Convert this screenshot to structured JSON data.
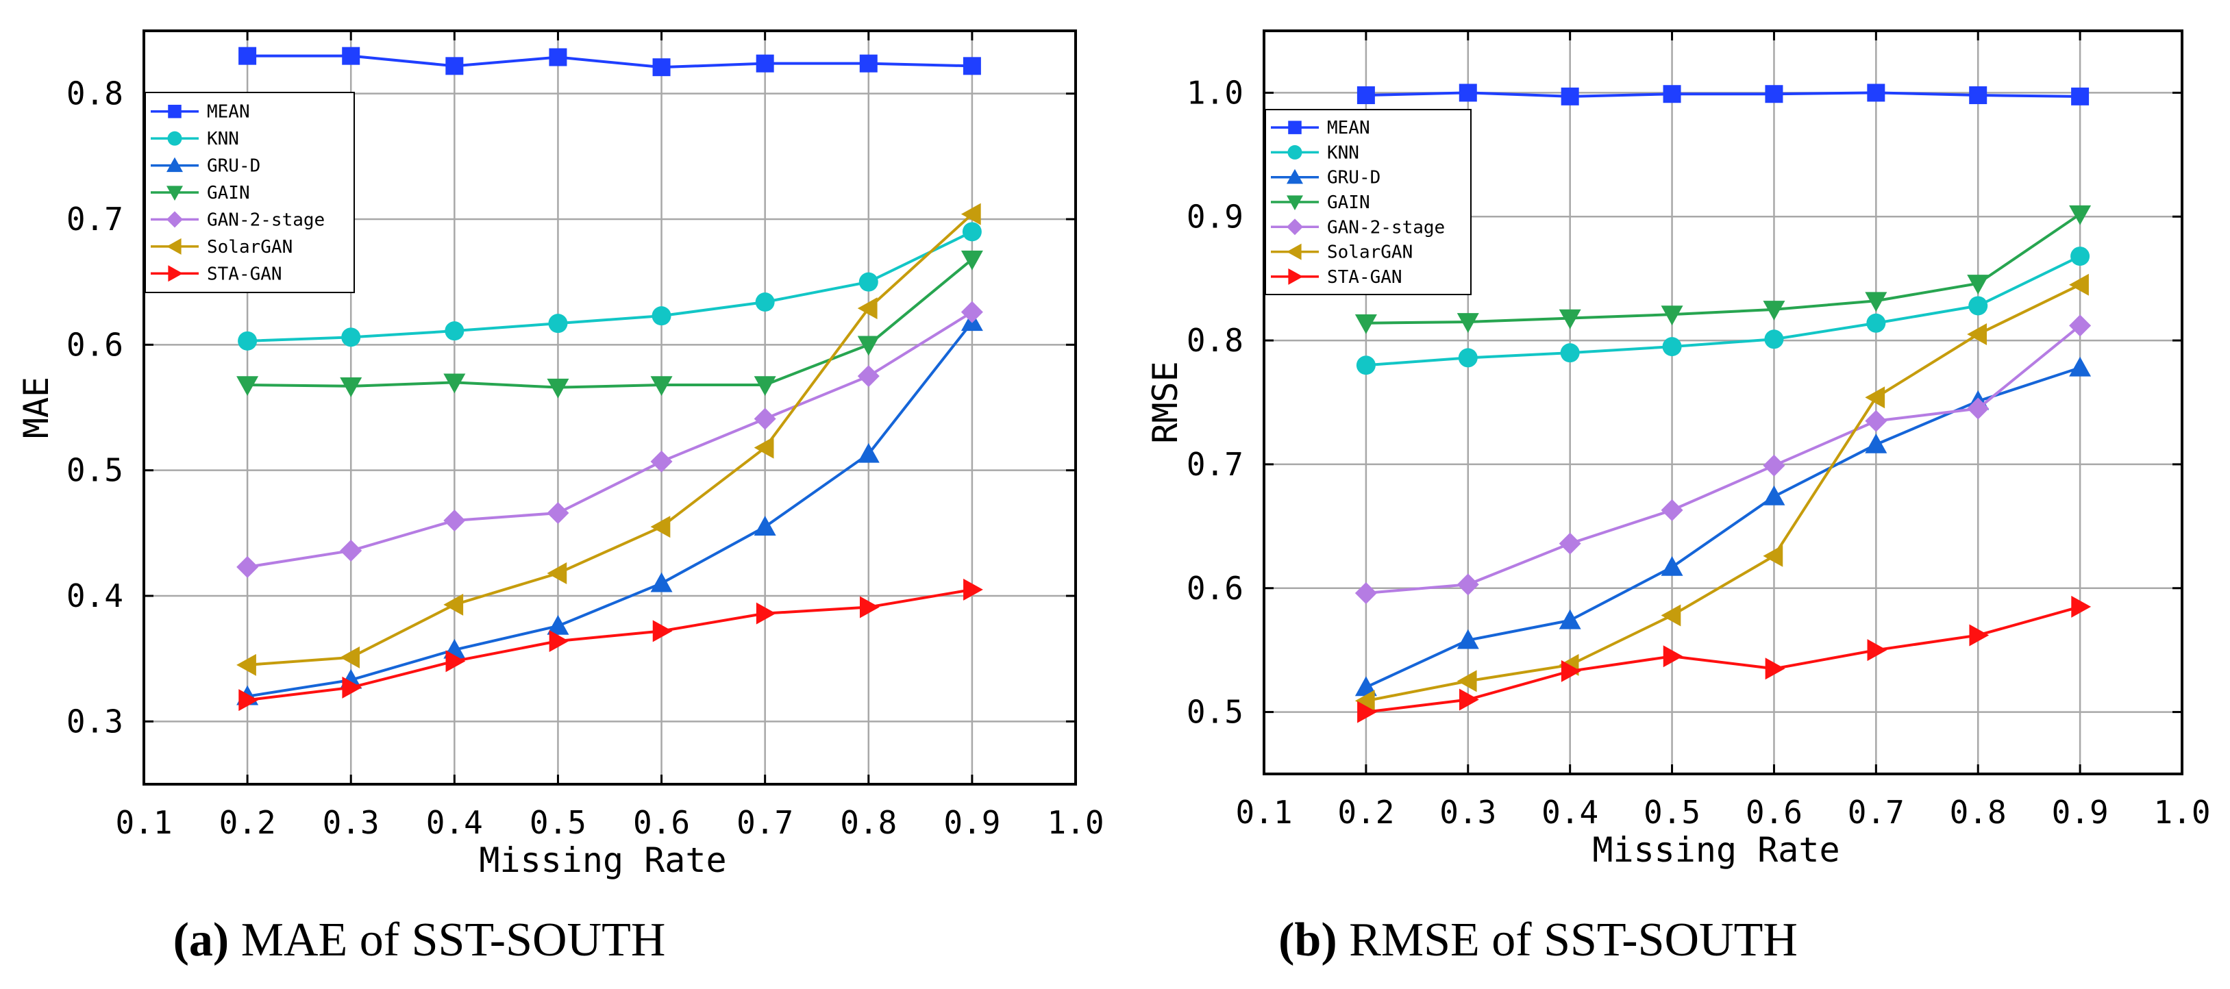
{
  "chart_data": [
    {
      "type": "line",
      "panel": "a",
      "caption_letter": "(a)",
      "caption_text": " MAE of SST-SOUTH",
      "xlabel": "Missing Rate",
      "ylabel": "MAE",
      "xlim": [
        0.1,
        1.0
      ],
      "ylim": [
        0.25,
        0.85
      ],
      "xticks": [
        0.1,
        0.2,
        0.3,
        0.4,
        0.5,
        0.6,
        0.7,
        0.8,
        0.9,
        1.0
      ],
      "yticks": [
        0.3,
        0.4,
        0.5,
        0.6,
        0.7,
        0.8
      ],
      "grid": true,
      "legend_position": "top-left",
      "x": [
        0.2,
        0.3,
        0.4,
        0.5,
        0.6,
        0.7,
        0.8,
        0.9
      ],
      "series": [
        {
          "name": "MEAN",
          "values": [
            0.83,
            0.83,
            0.822,
            0.829,
            0.821,
            0.824,
            0.824,
            0.822
          ]
        },
        {
          "name": "KNN",
          "values": [
            0.603,
            0.606,
            0.611,
            0.617,
            0.623,
            0.634,
            0.65,
            0.69
          ]
        },
        {
          "name": "GRU-D",
          "values": [
            0.32,
            0.333,
            0.357,
            0.376,
            0.41,
            0.455,
            0.513,
            0.618
          ]
        },
        {
          "name": "GAIN",
          "values": [
            0.568,
            0.567,
            0.57,
            0.566,
            0.568,
            0.568,
            0.6,
            0.668
          ]
        },
        {
          "name": "GAN-2-stage",
          "values": [
            0.423,
            0.436,
            0.46,
            0.466,
            0.507,
            0.541,
            0.575,
            0.626
          ]
        },
        {
          "name": "SolarGAN",
          "values": [
            0.345,
            0.351,
            0.393,
            0.418,
            0.455,
            0.518,
            0.629,
            0.704
          ]
        },
        {
          "name": "STA-GAN",
          "values": [
            0.317,
            0.327,
            0.348,
            0.364,
            0.372,
            0.386,
            0.391,
            0.405
          ]
        }
      ]
    },
    {
      "type": "line",
      "panel": "b",
      "caption_letter": "(b)",
      "caption_text": " RMSE of SST-SOUTH",
      "xlabel": "Missing Rate",
      "ylabel": "RMSE",
      "xlim": [
        0.1,
        1.0
      ],
      "ylim": [
        0.45,
        1.05
      ],
      "xticks": [
        0.1,
        0.2,
        0.3,
        0.4,
        0.5,
        0.6,
        0.7,
        0.8,
        0.9,
        1.0
      ],
      "yticks": [
        0.5,
        0.6,
        0.7,
        0.8,
        0.9,
        1.0
      ],
      "grid": true,
      "legend_position": "top-left",
      "x": [
        0.2,
        0.3,
        0.4,
        0.5,
        0.6,
        0.7,
        0.8,
        0.9
      ],
      "series": [
        {
          "name": "MEAN",
          "values": [
            0.998,
            1.0,
            0.997,
            0.999,
            0.999,
            1.0,
            0.998,
            0.997
          ]
        },
        {
          "name": "KNN",
          "values": [
            0.78,
            0.786,
            0.79,
            0.795,
            0.801,
            0.814,
            0.828,
            0.868
          ]
        },
        {
          "name": "GRU-D",
          "values": [
            0.52,
            0.558,
            0.574,
            0.617,
            0.674,
            0.716,
            0.751,
            0.778
          ]
        },
        {
          "name": "GAIN",
          "values": [
            0.814,
            0.815,
            0.818,
            0.821,
            0.825,
            0.832,
            0.846,
            0.902
          ]
        },
        {
          "name": "GAN-2-stage",
          "values": [
            0.596,
            0.603,
            0.636,
            0.663,
            0.699,
            0.735,
            0.745,
            0.812
          ]
        },
        {
          "name": "SolarGAN",
          "values": [
            0.509,
            0.525,
            0.538,
            0.578,
            0.626,
            0.754,
            0.805,
            0.845
          ]
        },
        {
          "name": "STA-GAN",
          "values": [
            0.5,
            0.51,
            0.533,
            0.545,
            0.535,
            0.55,
            0.562,
            0.585
          ]
        }
      ]
    }
  ],
  "styles": [
    {
      "name": "MEAN",
      "color": "#1f3fff",
      "marker": "square"
    },
    {
      "name": "KNN",
      "color": "#12c6c6",
      "marker": "circle"
    },
    {
      "name": "GRU-D",
      "color": "#1565d8",
      "marker": "triangle-up"
    },
    {
      "name": "GAIN",
      "color": "#27a550",
      "marker": "triangle-down"
    },
    {
      "name": "GAN-2-stage",
      "color": "#b57ce3",
      "marker": "diamond"
    },
    {
      "name": "SolarGAN",
      "color": "#c69c0c",
      "marker": "triangle-left"
    },
    {
      "name": "STA-GAN",
      "color": "#ff1010",
      "marker": "triangle-right"
    }
  ]
}
